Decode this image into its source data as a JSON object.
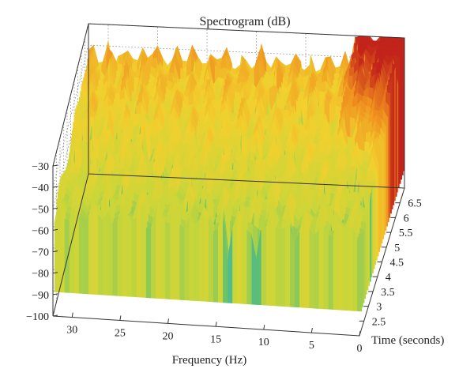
{
  "chart_data": {
    "type": "surface3d",
    "title": "Spectrogram (dB)",
    "xlabel": "Frequency (Hz)",
    "ylabel": "Time (seconds)",
    "zlabel": "",
    "x_ticks": [
      "0",
      "5",
      "10",
      "15",
      "20",
      "25",
      "30"
    ],
    "y_ticks": [
      "2.5",
      "3",
      "3.5",
      "4",
      "4.5",
      "5",
      "5.5",
      "6",
      "6.5"
    ],
    "z_ticks": [
      "−100",
      "−90",
      "−80",
      "−70",
      "−60",
      "−50",
      "−40",
      "−30"
    ],
    "xlim": [
      0,
      32
    ],
    "ylim": [
      2,
      7
    ],
    "zlim": [
      -100,
      -30
    ],
    "colormap": [
      "#3b7fc4",
      "#39b5c8",
      "#5fbf6e",
      "#c8d63a",
      "#f2d02e",
      "#ef8c1e",
      "#c2231a"
    ],
    "grid": true
  }
}
